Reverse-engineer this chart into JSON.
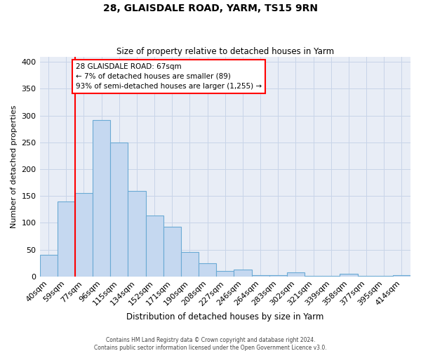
{
  "title": "28, GLAISDALE ROAD, YARM, TS15 9RN",
  "subtitle": "Size of property relative to detached houses in Yarm",
  "xlabel": "Distribution of detached houses by size in Yarm",
  "ylabel": "Number of detached properties",
  "bins": [
    "40sqm",
    "59sqm",
    "77sqm",
    "96sqm",
    "115sqm",
    "134sqm",
    "152sqm",
    "171sqm",
    "190sqm",
    "208sqm",
    "227sqm",
    "246sqm",
    "264sqm",
    "283sqm",
    "302sqm",
    "321sqm",
    "339sqm",
    "358sqm",
    "377sqm",
    "395sqm",
    "414sqm"
  ],
  "values": [
    40,
    140,
    155,
    292,
    250,
    160,
    113,
    92,
    46,
    25,
    10,
    13,
    2,
    2,
    7,
    1,
    1,
    5,
    1,
    1,
    2
  ],
  "bar_color": "#c5d8f0",
  "bar_edge_color": "#6aaad4",
  "red_line_x": 1.5,
  "annotation_line1": "28 GLAISDALE ROAD: 67sqm",
  "annotation_line2": "← 7% of detached houses are smaller (89)",
  "annotation_line3": "93% of semi-detached houses are larger (1,255) →",
  "ylim": [
    0,
    410
  ],
  "yticks": [
    0,
    50,
    100,
    150,
    200,
    250,
    300,
    350,
    400
  ],
  "grid_color": "#c8d4e8",
  "bg_color": "#e8edf6",
  "footer1": "Contains HM Land Registry data © Crown copyright and database right 2024.",
  "footer2": "Contains public sector information licensed under the Open Government Licence v3.0."
}
